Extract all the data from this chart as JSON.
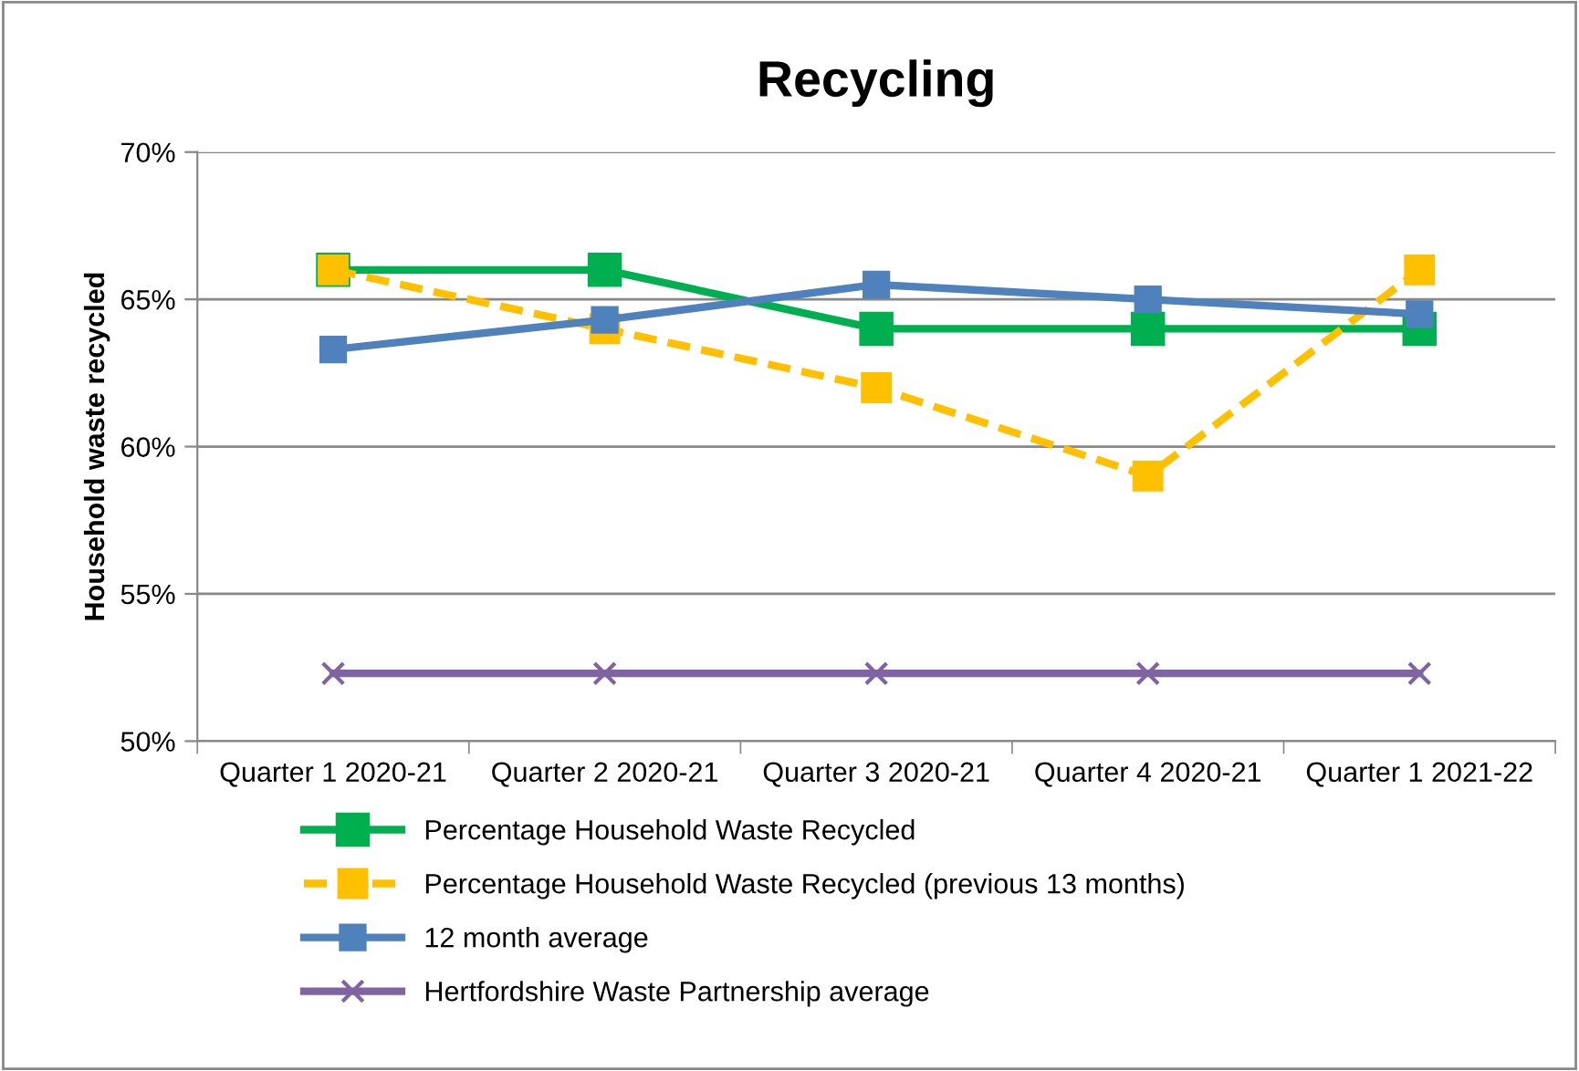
{
  "chart_data": {
    "type": "line",
    "title": "Recycling",
    "ylabel": "Household waste recycled",
    "categories": [
      "Quarter 1 2020-21",
      "Quarter 2 2020-21",
      "Quarter 3 2020-21",
      "Quarter 4 2020-21",
      "Quarter 1 2021-22"
    ],
    "series": [
      {
        "name": "Percentage Household Waste Recycled",
        "color": "#00b050",
        "values": [
          66,
          66,
          64,
          64,
          64
        ],
        "marker": "square",
        "line_style": "solid"
      },
      {
        "name": "Percentage Household Waste Recycled (previous 13 months)",
        "color": "#ffc000",
        "values": [
          66,
          64,
          62,
          59,
          66
        ],
        "marker": "square",
        "line_style": "dashed"
      },
      {
        "name": "12 month average",
        "color": "#4f81bd",
        "values": [
          63.3,
          64.3,
          65.5,
          65,
          64.5
        ],
        "marker": "square",
        "line_style": "solid"
      },
      {
        "name": "Hertfordshire Waste Partnership average",
        "color": "#8064a2",
        "values": [
          52.3,
          52.3,
          52.3,
          52.3,
          52.3
        ],
        "marker": "cross",
        "line_style": "solid"
      }
    ],
    "ylim": [
      50,
      70
    ],
    "yticks": [
      {
        "value": 50,
        "label": "50%"
      },
      {
        "value": 55,
        "label": "55%"
      },
      {
        "value": 60,
        "label": "60%"
      },
      {
        "value": 65,
        "label": "65%"
      },
      {
        "value": 70,
        "label": "70%"
      }
    ],
    "grid": "y",
    "legend": "bottom"
  }
}
